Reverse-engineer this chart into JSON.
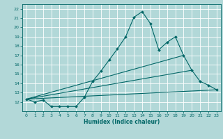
{
  "xlabel": "Humidex (Indice chaleur)",
  "xlim": [
    -0.5,
    23.5
  ],
  "ylim": [
    11.0,
    22.5
  ],
  "yticks": [
    12,
    13,
    14,
    15,
    16,
    17,
    18,
    19,
    20,
    21,
    22
  ],
  "xticks": [
    0,
    1,
    2,
    3,
    4,
    5,
    6,
    7,
    8,
    9,
    10,
    11,
    12,
    13,
    14,
    15,
    16,
    17,
    18,
    19,
    20,
    21,
    22,
    23
  ],
  "bg_color": "#b2d8d8",
  "grid_color": "#ffffff",
  "line_color": "#006666",
  "lines": [
    {
      "x": [
        0,
        1,
        2,
        3,
        4,
        5,
        6,
        7,
        8,
        9,
        10,
        11,
        12,
        13,
        14,
        15,
        16,
        17,
        18,
        19,
        20,
        21,
        22,
        23
      ],
      "y": [
        12.3,
        12.0,
        12.2,
        11.5,
        11.5,
        11.5,
        11.5,
        12.5,
        14.2,
        15.3,
        16.5,
        17.7,
        19.0,
        21.1,
        21.7,
        20.4,
        17.6,
        18.4,
        19.0,
        17.0,
        15.4,
        14.2,
        13.8,
        13.3
      ],
      "marker": "D",
      "markersize": 2.0,
      "linewidth": 0.8,
      "with_marker": true
    },
    {
      "x": [
        0,
        19
      ],
      "y": [
        12.3,
        17.0
      ],
      "linewidth": 0.8,
      "with_marker": false
    },
    {
      "x": [
        0,
        20
      ],
      "y": [
        12.3,
        15.4
      ],
      "linewidth": 0.8,
      "with_marker": false
    },
    {
      "x": [
        0,
        23
      ],
      "y": [
        12.3,
        13.3
      ],
      "linewidth": 0.8,
      "with_marker": false
    }
  ]
}
